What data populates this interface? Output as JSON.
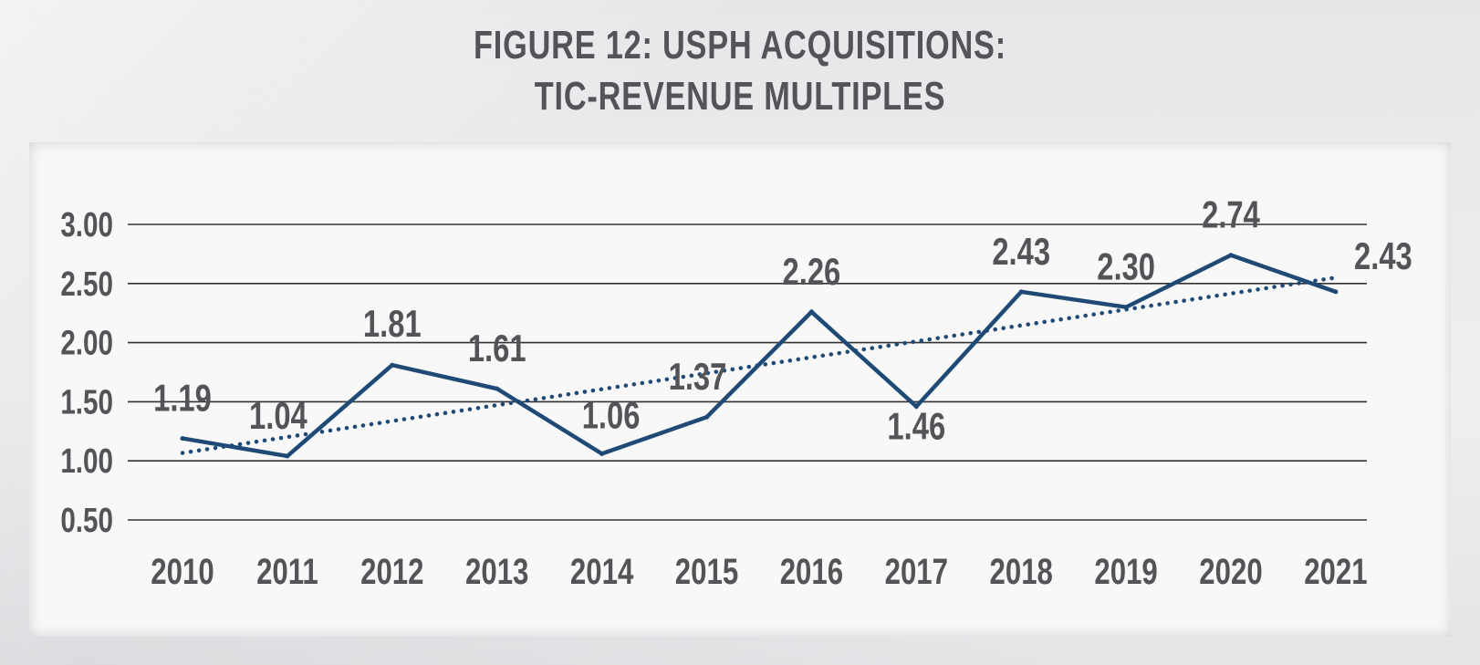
{
  "title_lines": [
    "FIGURE 12: USPH ACQUISITIONS:",
    "TIC-REVENUE MULTIPLES"
  ],
  "colors": {
    "series_line": "#1f4a75",
    "trend_line": "#1f4a75",
    "grid": "#333333",
    "text": "#545458"
  },
  "chart_data": {
    "type": "line",
    "title": "FIGURE 12: USPH ACQUISITIONS: TIC-REVENUE MULTIPLES",
    "xlabel": "",
    "ylabel": "",
    "categories": [
      "2010",
      "2011",
      "2012",
      "2013",
      "2014",
      "2015",
      "2016",
      "2017",
      "2018",
      "2019",
      "2020",
      "2021"
    ],
    "series": [
      {
        "values": [
          1.19,
          1.04,
          1.81,
          1.61,
          1.06,
          1.37,
          2.26,
          1.46,
          2.43,
          2.3,
          2.74,
          2.43
        ],
        "labels": [
          "1.19",
          "1.04",
          "1.81",
          "1.61",
          "1.06",
          "1.37",
          "2.26",
          "1.46",
          "2.43",
          "2.30",
          "2.74",
          "2.43"
        ]
      }
    ],
    "trendline": {
      "style": "dotted",
      "type": "linear"
    },
    "ylim": [
      0.5,
      3.0
    ],
    "yticks": [
      "0.50",
      "1.00",
      "1.50",
      "2.00",
      "2.50",
      "3.00"
    ],
    "grid": true,
    "legend": false
  }
}
